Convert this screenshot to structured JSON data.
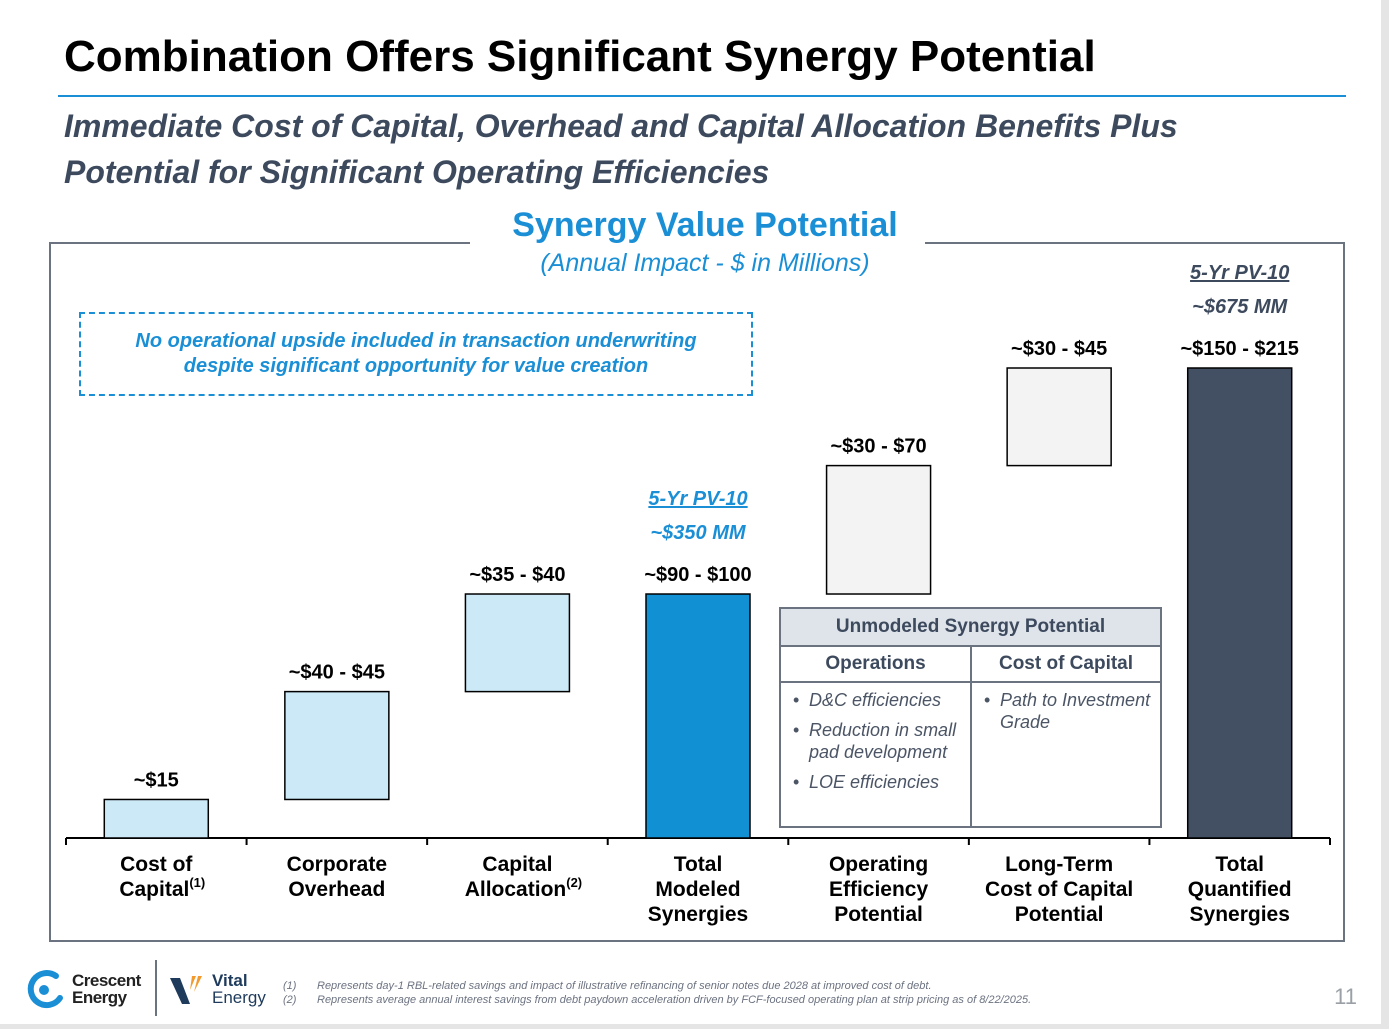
{
  "slide": {
    "title": "Combination Offers Significant Synergy Potential",
    "subtitle_line1": "Immediate Cost of Capital, Overhead and Capital Allocation Benefits Plus",
    "subtitle_line2": "Potential for Significant Operating Efficiencies",
    "page_number": "11"
  },
  "note_box": {
    "line1": "No operational upside included in transaction underwriting",
    "line2": "despite significant opportunity for value creation"
  },
  "chart_data": {
    "type": "bar",
    "subtype": "waterfall",
    "title": "Synergy Value Potential",
    "subtitle": "(Annual Impact - $ in Millions)",
    "ylim": [
      0,
      215
    ],
    "grid": false,
    "categories": [
      {
        "lines": [
          "Cost of",
          "Capital"
        ],
        "sup": "(1)"
      },
      {
        "lines": [
          "Corporate",
          "Overhead"
        ],
        "sup": ""
      },
      {
        "lines": [
          "Capital",
          "Allocation"
        ],
        "sup": "(2)"
      },
      {
        "lines": [
          "Total",
          "Modeled",
          "Synergies"
        ],
        "sup": ""
      },
      {
        "lines": [
          "Operating",
          "Efficiency",
          "Potential"
        ],
        "sup": ""
      },
      {
        "lines": [
          "Long-Term",
          "Cost of Capital",
          "Potential"
        ],
        "sup": ""
      },
      {
        "lines": [
          "Total",
          "Quantified",
          "Synergies"
        ],
        "sup": ""
      }
    ],
    "bars": [
      {
        "label": "~$15",
        "base": 0,
        "top": 15,
        "kind": "step"
      },
      {
        "label": "~$40 - $45",
        "base": 15,
        "top": 57,
        "kind": "step"
      },
      {
        "label": "~$35 - $40",
        "base": 57,
        "top": 95,
        "kind": "step"
      },
      {
        "label": "~$90 - $100",
        "base": 0,
        "top": 95,
        "kind": "total"
      },
      {
        "label": "~$30 - $70",
        "base": 95,
        "top": 145,
        "kind": "unmodeled"
      },
      {
        "label": "~$30 - $45",
        "base": 145,
        "top": 183,
        "kind": "unmodeled"
      },
      {
        "label": "~$150 - $215",
        "base": 0,
        "top": 183,
        "kind": "grand_total"
      }
    ],
    "colors": {
      "step": "#cce9f8",
      "total": "#1190d4",
      "unmodeled": "#f3f3f3",
      "grand_total": "#434f63",
      "axis": "#000000"
    },
    "annotations": [
      {
        "bar_index": 3,
        "label": "5-Yr PV-10",
        "value": "~$350 MM",
        "color": "#1a8fd6"
      },
      {
        "bar_index": 6,
        "label": "5-Yr PV-10",
        "value": "~$675 MM",
        "color": "#3d4a5e"
      }
    ]
  },
  "unmodeled_table": {
    "header": "Unmodeled Synergy Potential",
    "col1_title": "Operations",
    "col2_title": "Cost of Capital",
    "col1_items": [
      "D&C efficiencies",
      "Reduction in small pad development",
      "LOE efficiencies"
    ],
    "col2_items": [
      "Path to Investment Grade"
    ]
  },
  "footer": {
    "crescent_line1": "Crescent",
    "crescent_line2": "Energy",
    "vital_line1": "Vital",
    "vital_line2": "Energy",
    "footnote1_num": "(1)",
    "footnote1_text": "Represents day-1 RBL-related savings and impact of illustrative refinancing of senior notes due 2028 at improved cost of debt.",
    "footnote2_num": "(2)",
    "footnote2_text": "Represents average annual interest savings from debt paydown acceleration driven by FCF-focused operating plan at strip pricing as of 8/22/2025."
  }
}
